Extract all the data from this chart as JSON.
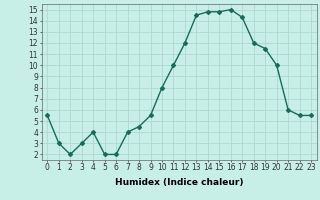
{
  "x": [
    0,
    1,
    2,
    3,
    4,
    5,
    6,
    7,
    8,
    9,
    10,
    11,
    12,
    13,
    14,
    15,
    16,
    17,
    18,
    19,
    20,
    21,
    22,
    23
  ],
  "y": [
    5.5,
    3.0,
    2.0,
    3.0,
    4.0,
    2.0,
    2.0,
    4.0,
    4.5,
    5.5,
    8.0,
    10.0,
    12.0,
    14.5,
    14.8,
    14.8,
    15.0,
    14.3,
    12.0,
    11.5,
    10.0,
    6.0,
    5.5,
    5.5
  ],
  "line_color": "#1a6b5a",
  "marker": "D",
  "marker_size": 2,
  "bg_color": "#c8eee8",
  "grid_color": "#aad4cc",
  "xlabel": "Humidex (Indice chaleur)",
  "xlim": [
    -0.5,
    23.5
  ],
  "ylim": [
    1.5,
    15.5
  ],
  "yticks": [
    2,
    3,
    4,
    5,
    6,
    7,
    8,
    9,
    10,
    11,
    12,
    13,
    14,
    15
  ],
  "xticks": [
    0,
    1,
    2,
    3,
    4,
    5,
    6,
    7,
    8,
    9,
    10,
    11,
    12,
    13,
    14,
    15,
    16,
    17,
    18,
    19,
    20,
    21,
    22,
    23
  ],
  "tick_label_size": 5.5,
  "xlabel_fontsize": 6.5,
  "line_width": 1.0
}
